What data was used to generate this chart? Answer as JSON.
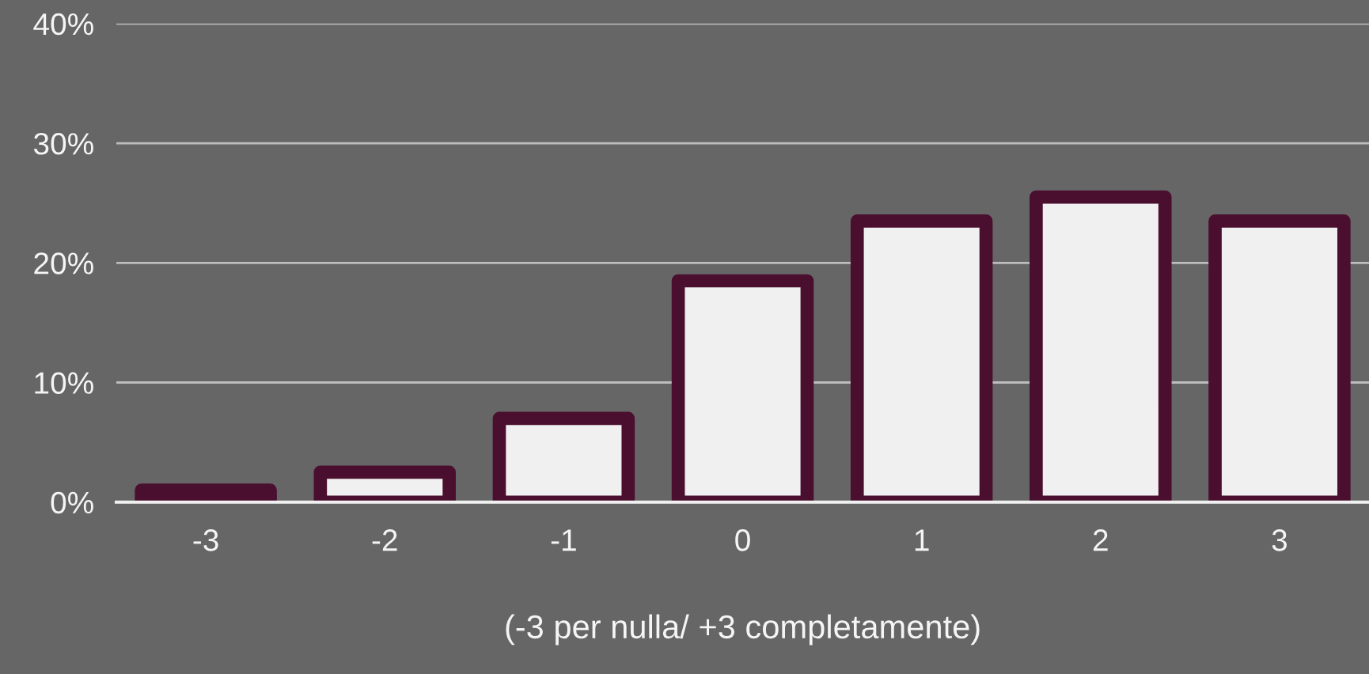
{
  "chart_data": {
    "type": "bar",
    "xlabel": "(-3 per nulla/ +3 completamente)",
    "categories": [
      "-3",
      "-2",
      "-1",
      "0",
      "1",
      "2",
      "3"
    ],
    "values": [
      1,
      2.5,
      7,
      18.5,
      23.5,
      25.5,
      23.5
    ],
    "color": "#f0f0f0",
    "ylim": [
      0,
      40
    ],
    "yticks": [
      {
        "value": 0,
        "label": "0%"
      },
      {
        "value": 10,
        "label": "10%"
      },
      {
        "value": 20,
        "label": "20%"
      },
      {
        "value": 30,
        "label": "30%"
      },
      {
        "value": 40,
        "label": "40%"
      }
    ],
    "grid": "y",
    "legend": false
  }
}
